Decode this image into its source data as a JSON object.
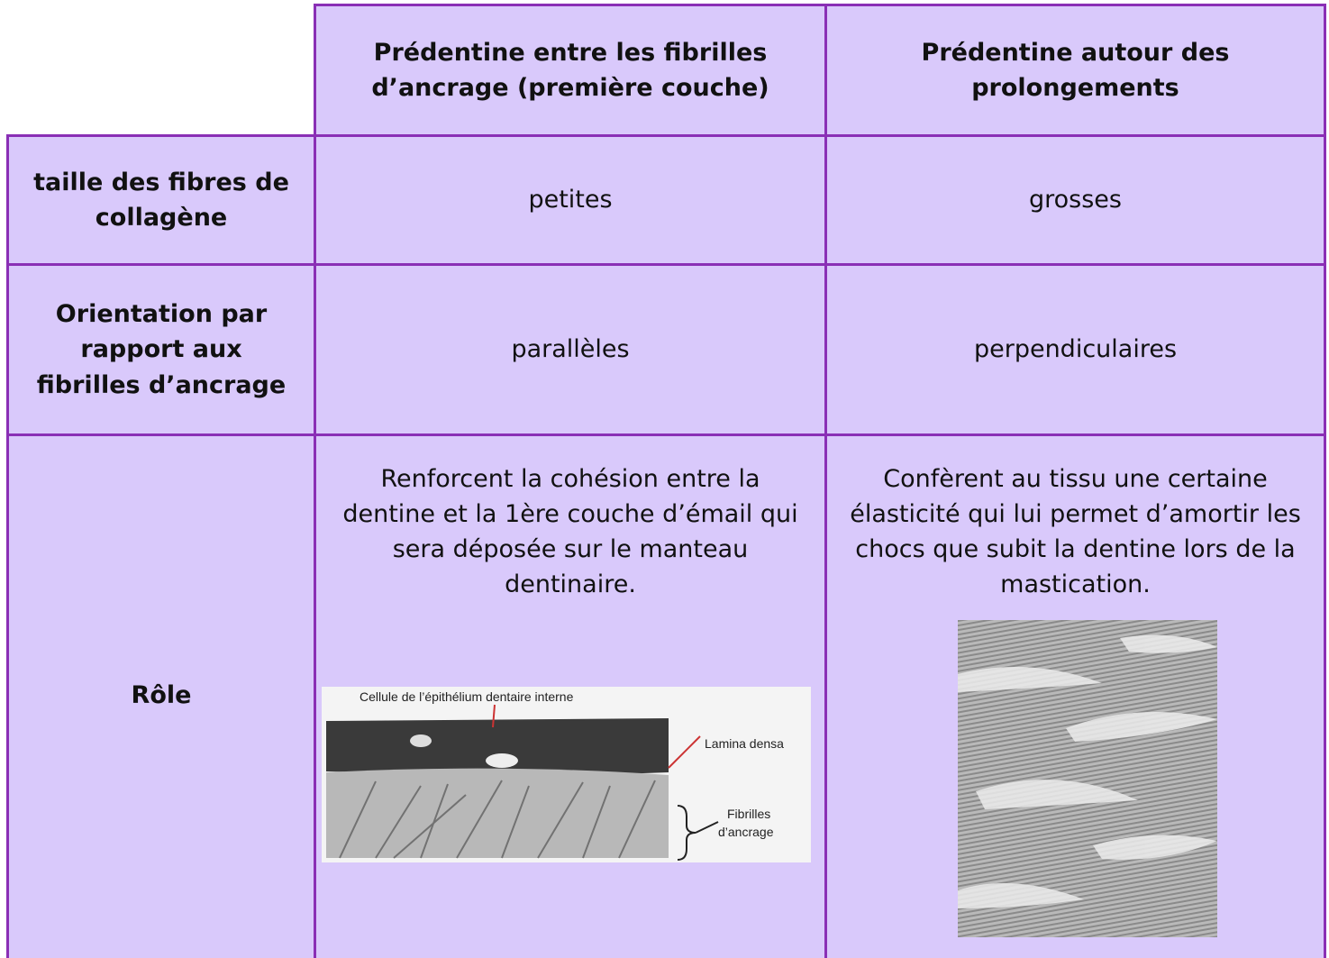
{
  "table": {
    "columns": [
      "Prédentine entre les fibrilles d’ancrage (première couche)",
      "Prédentine autour des prolongements"
    ],
    "rows": [
      {
        "label": "taille des fibres de collagène",
        "cells": [
          "petites",
          "grosses"
        ]
      },
      {
        "label": "Orientation par rapport aux fibrilles d’ancrage",
        "cells": [
          "parallèles",
          "perpendiculaires"
        ]
      },
      {
        "label": "Rôle",
        "cells": [
          "Renforcent la cohésion entre la dentine et la 1ère couche d’émail qui sera déposée sur le manteau dentinaire.",
          "Confèrent au tissu une certaine élasticité qui lui permet d’amortir les chocs que subit la dentine lors de la mastication."
        ]
      }
    ]
  },
  "figure": {
    "labels": [
      "Cellule de l’épithélium dentaire interne",
      "Lamina densa",
      "Fibrilles",
      "d’ancrage"
    ]
  }
}
